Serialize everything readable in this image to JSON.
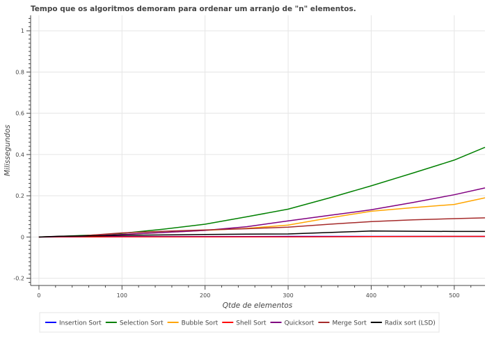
{
  "chart_data": {
    "type": "line",
    "title": "Tempo que os algoritmos demoram para ordenar um arranjo de \"n\" elementos.",
    "xlabel": "Qtde de elementos",
    "ylabel": "Milissegundos",
    "xlim": [
      -10,
      537
    ],
    "ylim": [
      -0.235,
      1.075
    ],
    "x_ticks": [
      0,
      100,
      200,
      300,
      400,
      500
    ],
    "x_tick_labels": [
      "0",
      "100",
      "200",
      "300",
      "400",
      "500"
    ],
    "y_ticks": [
      -0.2,
      0,
      0.2,
      0.4,
      0.6,
      0.8,
      1
    ],
    "y_tick_labels": [
      "-0.2",
      "0",
      "0.2",
      "0.4",
      "0.6",
      "0.8",
      "1"
    ],
    "grid": true,
    "legend_position": "bottom",
    "series": [
      {
        "name": "Insertion Sort",
        "color": "#0000ff",
        "x": [
          0,
          100,
          200,
          300,
          400,
          500,
          537
        ],
        "values": [
          0,
          0.002,
          0.002,
          0.003,
          0.003,
          0.003,
          0.003
        ]
      },
      {
        "name": "Selection Sort",
        "color": "#008000",
        "x": [
          0,
          25,
          50,
          75,
          100,
          150,
          200,
          250,
          300,
          350,
          400,
          450,
          500,
          537
        ],
        "values": [
          0,
          0.003,
          0.007,
          0.011,
          0.018,
          0.038,
          0.062,
          0.098,
          0.135,
          0.19,
          0.248,
          0.31,
          0.373,
          0.435
        ]
      },
      {
        "name": "Bubble Sort",
        "color": "#ffa500",
        "x": [
          0,
          50,
          100,
          150,
          200,
          250,
          300,
          350,
          400,
          450,
          500,
          537
        ],
        "values": [
          0,
          0.004,
          0.012,
          0.022,
          0.032,
          0.042,
          0.058,
          0.093,
          0.125,
          0.142,
          0.158,
          0.19
        ]
      },
      {
        "name": "Shell Sort",
        "color": "#ff0000",
        "x": [
          0,
          100,
          200,
          300,
          400,
          500,
          537
        ],
        "values": [
          0,
          0.001,
          0.001,
          0.001,
          0.002,
          0.003,
          0.003
        ]
      },
      {
        "name": "Quicksort",
        "color": "#800080",
        "x": [
          0,
          50,
          100,
          150,
          200,
          250,
          300,
          350,
          400,
          450,
          500,
          537
        ],
        "values": [
          0,
          0.003,
          0.012,
          0.022,
          0.032,
          0.05,
          0.078,
          0.105,
          0.132,
          0.167,
          0.205,
          0.238
        ]
      },
      {
        "name": "Merge Sort",
        "color": "#a52a2a",
        "x": [
          0,
          50,
          100,
          150,
          200,
          250,
          300,
          350,
          400,
          450,
          500,
          537
        ],
        "values": [
          0,
          0.005,
          0.02,
          0.028,
          0.034,
          0.04,
          0.048,
          0.062,
          0.075,
          0.083,
          0.089,
          0.093
        ]
      },
      {
        "name": "Radix sort (LSD)",
        "color": "#000000",
        "x": [
          0,
          25,
          50,
          75,
          100,
          150,
          200,
          250,
          300,
          350,
          400,
          450,
          500,
          537
        ],
        "values": [
          0,
          0.004,
          0.005,
          0.006,
          0.008,
          0.01,
          0.012,
          0.014,
          0.015,
          0.022,
          0.029,
          0.028,
          0.027,
          0.027
        ]
      }
    ]
  }
}
